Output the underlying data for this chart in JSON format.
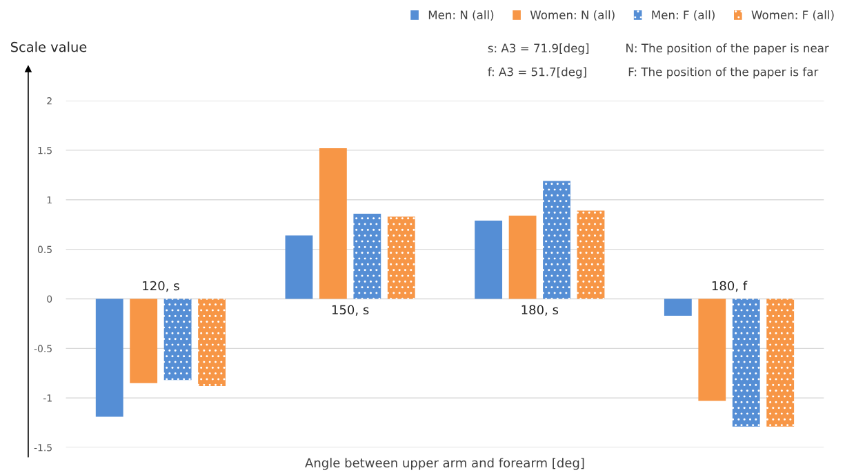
{
  "chart_data": {
    "type": "bar",
    "xlabel": "Angle between upper arm and forearm [deg]",
    "ylabel": "Scale value",
    "categories": [
      "120, s",
      "150, s",
      "180, s",
      "180, f"
    ],
    "series": [
      {
        "name": "Men: N (all)",
        "color": "#558ed5",
        "values": [
          -1.19,
          0.64,
          0.79,
          -0.17
        ]
      },
      {
        "name": "Women: N (all)",
        "color": "#f79646",
        "values": [
          -0.85,
          1.52,
          0.84,
          -1.03
        ]
      },
      {
        "name": "Men: F (all)",
        "color": "#558ed5",
        "line_style": "dotted",
        "values": [
          -0.82,
          0.86,
          1.19,
          -1.29
        ]
      },
      {
        "name": "Women: F (all)",
        "color": "#f79646",
        "line_style": "dotted",
        "values": [
          -0.88,
          0.83,
          0.89,
          -1.29
        ]
      }
    ],
    "ylim": [
      -1.5,
      2
    ],
    "yticks": [
      {
        "value": -1.5,
        "label": "-1.5"
      },
      {
        "value": -1,
        "label": "-1"
      },
      {
        "value": -0.5,
        "label": "-0.5"
      },
      0,
      0.5,
      1,
      1.5,
      2
    ],
    "grid": "y",
    "legend": "top right",
    "annotations": [
      "s: A3 = 71.9[deg]",
      "N: The position of the paper is near",
      "f: A3 = 51.7[deg]",
      "F: The position of the paper is far"
    ]
  }
}
